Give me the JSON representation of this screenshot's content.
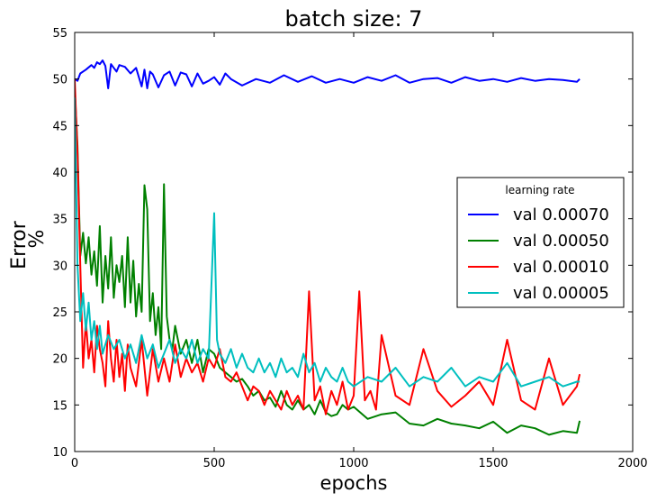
{
  "chart_data": {
    "type": "line",
    "title": "batch size: 7",
    "xlabel": "epochs",
    "ylabel": "Error\n%",
    "xlim": [
      0,
      2000
    ],
    "ylim": [
      10,
      55
    ],
    "xticks": [
      0,
      500,
      1000,
      1500,
      2000
    ],
    "yticks": [
      10,
      15,
      20,
      25,
      30,
      35,
      40,
      45,
      50,
      55
    ],
    "grid": false,
    "legend": {
      "title": "learning rate",
      "placement": "center-right"
    },
    "series": [
      {
        "name": "val 0.00070",
        "color": "#0000ff",
        "x": [
          0,
          10,
          20,
          40,
          60,
          70,
          80,
          90,
          100,
          110,
          120,
          130,
          140,
          150,
          160,
          180,
          200,
          220,
          240,
          250,
          260,
          270,
          280,
          300,
          320,
          340,
          360,
          380,
          400,
          420,
          440,
          460,
          480,
          500,
          520,
          540,
          560,
          600,
          650,
          700,
          750,
          800,
          850,
          900,
          950,
          1000,
          1050,
          1100,
          1150,
          1200,
          1250,
          1300,
          1350,
          1400,
          1450,
          1500,
          1550,
          1600,
          1650,
          1700,
          1750,
          1800,
          1810
        ],
        "y": [
          50.0,
          49.8,
          50.6,
          51.0,
          51.5,
          51.2,
          51.8,
          51.6,
          52.0,
          51.4,
          49.0,
          51.6,
          51.2,
          50.8,
          51.5,
          51.3,
          50.6,
          51.2,
          49.2,
          51.0,
          49.0,
          50.8,
          50.5,
          49.1,
          50.4,
          50.8,
          49.3,
          50.7,
          50.5,
          49.2,
          50.6,
          49.5,
          49.8,
          50.2,
          49.4,
          50.6,
          50.0,
          49.3,
          50.0,
          49.6,
          50.4,
          49.7,
          50.3,
          49.6,
          50.0,
          49.6,
          50.2,
          49.8,
          50.4,
          49.6,
          50.0,
          50.1,
          49.6,
          50.2,
          49.8,
          50.0,
          49.7,
          50.1,
          49.8,
          50.0,
          49.9,
          49.7,
          50.0
        ]
      },
      {
        "name": "val 0.00050",
        "color": "#008000",
        "x": [
          0,
          10,
          20,
          30,
          40,
          50,
          60,
          70,
          80,
          90,
          100,
          110,
          120,
          130,
          140,
          150,
          160,
          170,
          180,
          190,
          200,
          210,
          220,
          230,
          240,
          250,
          260,
          270,
          280,
          290,
          300,
          310,
          320,
          330,
          340,
          350,
          360,
          380,
          400,
          420,
          440,
          460,
          480,
          500,
          520,
          540,
          560,
          580,
          600,
          620,
          640,
          660,
          680,
          700,
          720,
          740,
          760,
          780,
          800,
          820,
          840,
          860,
          880,
          900,
          920,
          940,
          960,
          980,
          1000,
          1050,
          1100,
          1150,
          1200,
          1250,
          1300,
          1350,
          1400,
          1450,
          1500,
          1550,
          1600,
          1650,
          1700,
          1750,
          1800,
          1810
        ],
        "y": [
          49.0,
          42.8,
          31.0,
          33.5,
          30.2,
          33.0,
          29.0,
          31.5,
          27.8,
          34.2,
          26.0,
          31.0,
          27.5,
          33.0,
          26.5,
          30.0,
          28.2,
          31.0,
          25.5,
          33.0,
          26.0,
          30.5,
          24.5,
          28.0,
          25.0,
          38.6,
          36.0,
          24.0,
          27.0,
          22.5,
          25.5,
          21.0,
          38.7,
          24.5,
          22.0,
          21.0,
          23.5,
          20.5,
          22.0,
          19.5,
          22.0,
          18.5,
          21.0,
          20.5,
          19.0,
          18.5,
          18.0,
          17.5,
          17.8,
          17.0,
          16.0,
          16.5,
          15.5,
          15.8,
          14.8,
          16.5,
          15.0,
          14.5,
          15.5,
          14.5,
          15.0,
          14.0,
          15.5,
          14.2,
          13.8,
          14.0,
          15.0,
          14.5,
          14.8,
          13.5,
          14.0,
          14.2,
          13.0,
          12.8,
          13.5,
          13.0,
          12.8,
          12.5,
          13.2,
          12.0,
          12.8,
          12.5,
          11.8,
          12.2,
          12.0,
          13.3
        ]
      },
      {
        "name": "val 0.00010",
        "color": "#ff0000",
        "x": [
          0,
          10,
          20,
          30,
          40,
          50,
          60,
          70,
          80,
          90,
          100,
          110,
          120,
          130,
          140,
          150,
          160,
          170,
          180,
          190,
          200,
          220,
          240,
          260,
          280,
          300,
          320,
          340,
          360,
          380,
          400,
          420,
          440,
          460,
          480,
          500,
          520,
          540,
          560,
          580,
          600,
          620,
          640,
          660,
          680,
          700,
          720,
          740,
          760,
          780,
          800,
          820,
          840,
          860,
          880,
          900,
          920,
          940,
          960,
          980,
          1000,
          1020,
          1040,
          1060,
          1080,
          1100,
          1150,
          1200,
          1250,
          1300,
          1350,
          1400,
          1450,
          1500,
          1550,
          1600,
          1650,
          1700,
          1750,
          1800,
          1810
        ],
        "y": [
          50.0,
          42.0,
          30.0,
          19.0,
          24.0,
          20.0,
          22.0,
          18.5,
          23.5,
          21.0,
          19.5,
          17.0,
          24.0,
          20.0,
          17.5,
          22.0,
          18.0,
          20.5,
          16.5,
          21.5,
          19.0,
          17.0,
          22.0,
          16.0,
          21.0,
          17.5,
          20.0,
          17.5,
          21.5,
          18.0,
          20.0,
          18.5,
          19.5,
          17.5,
          20.0,
          19.0,
          21.0,
          18.0,
          17.5,
          18.5,
          17.0,
          15.5,
          17.0,
          16.5,
          15.0,
          16.5,
          15.5,
          14.5,
          16.5,
          15.0,
          16.0,
          14.5,
          27.2,
          15.5,
          17.0,
          14.0,
          16.5,
          15.0,
          17.5,
          14.5,
          16.0,
          27.2,
          15.5,
          16.5,
          14.5,
          22.5,
          16.0,
          15.0,
          21.0,
          16.5,
          14.8,
          16.0,
          17.5,
          15.0,
          22.0,
          15.5,
          14.5,
          20.0,
          15.0,
          17.0,
          18.3
        ]
      },
      {
        "name": "val 0.00005",
        "color": "#00bfbf",
        "x": [
          0,
          10,
          20,
          30,
          40,
          50,
          60,
          70,
          80,
          90,
          100,
          120,
          140,
          160,
          180,
          200,
          220,
          240,
          260,
          280,
          300,
          320,
          340,
          360,
          380,
          400,
          420,
          440,
          460,
          480,
          500,
          510,
          520,
          540,
          560,
          580,
          600,
          620,
          640,
          660,
          680,
          700,
          720,
          740,
          760,
          780,
          800,
          820,
          840,
          860,
          880,
          900,
          920,
          940,
          960,
          980,
          1000,
          1050,
          1100,
          1150,
          1200,
          1250,
          1300,
          1350,
          1400,
          1450,
          1500,
          1550,
          1600,
          1650,
          1700,
          1750,
          1800,
          1810
        ],
        "y": [
          48.0,
          30.0,
          24.0,
          27.0,
          23.0,
          26.0,
          22.0,
          24.0,
          21.0,
          23.5,
          20.5,
          22.5,
          21.0,
          22.0,
          20.0,
          21.5,
          19.5,
          22.5,
          20.0,
          21.5,
          19.0,
          20.5,
          22.0,
          19.5,
          21.0,
          20.0,
          22.0,
          19.5,
          21.0,
          20.0,
          35.6,
          22.0,
          20.5,
          19.5,
          21.0,
          19.0,
          20.5,
          19.0,
          18.5,
          20.0,
          18.5,
          19.5,
          18.0,
          20.0,
          18.5,
          19.0,
          18.0,
          20.5,
          18.5,
          19.5,
          17.5,
          19.0,
          18.0,
          17.5,
          19.0,
          17.5,
          17.0,
          18.0,
          17.5,
          19.0,
          17.0,
          18.0,
          17.5,
          19.0,
          17.0,
          18.0,
          17.5,
          19.5,
          17.0,
          17.5,
          18.0,
          17.0,
          17.5,
          17.5
        ]
      }
    ]
  }
}
